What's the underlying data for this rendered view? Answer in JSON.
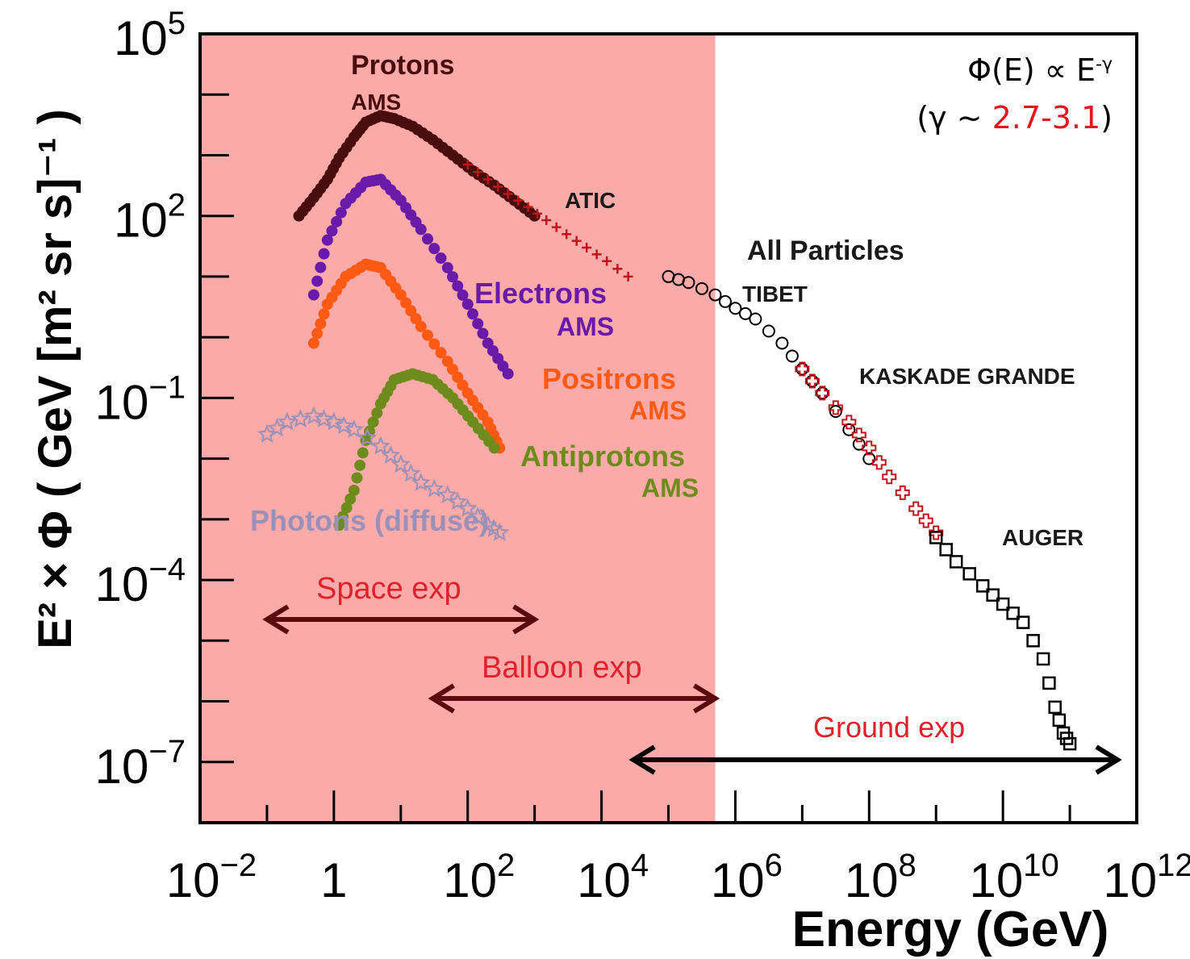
{
  "annotation": {
    "formula_main": "Φ(E) ∝ E",
    "formula_exp": "-γ",
    "gamma_open": "(γ ~ ",
    "gamma_value": "2.7-3.1",
    "gamma_close": ")"
  },
  "colors": {
    "space_band": "#fbaaaa",
    "protons": "#4a0d0d",
    "atic": "#c0141c",
    "electrons": "#6a1aa8",
    "positrons": "#ff5a14",
    "antiprotons": "#6e8c1c",
    "photons": "#9a90b8",
    "experiment_text": "#e0202a",
    "arrow_dark": "#5a0a0a",
    "black": "#000000"
  },
  "chart_data": {
    "type": "scatter",
    "ylabel": "E² × Φ ( GeV [m² sr s]⁻¹ )",
    "xlabel": "Energy (GeV)",
    "x_scale": "log",
    "y_scale": "log",
    "xlim": [
      0.01,
      1000000000000.0
    ],
    "ylim": [
      1e-08,
      100000.0
    ],
    "x_ticks": [
      {
        "value": 0.01,
        "base": "10",
        "exp": "−2"
      },
      {
        "value": 1,
        "base": "1",
        "exp": ""
      },
      {
        "value": 100,
        "base": "10",
        "exp": "2"
      },
      {
        "value": 10000,
        "base": "10",
        "exp": "4"
      },
      {
        "value": 1000000,
        "base": "10",
        "exp": "6"
      },
      {
        "value": 100000000,
        "base": "10",
        "exp": "8"
      },
      {
        "value": 10000000000,
        "base": "10",
        "exp": "10"
      },
      {
        "value": 1000000000000,
        "base": "10",
        "exp": "12"
      }
    ],
    "y_ticks": [
      {
        "value": 100000,
        "base": "10",
        "exp": "5"
      },
      {
        "value": 100,
        "base": "10",
        "exp": "2"
      },
      {
        "value": 0.1,
        "base": "10",
        "exp": "−1"
      },
      {
        "value": 0.0001,
        "base": "10",
        "exp": "−4"
      },
      {
        "value": 1e-07,
        "base": "10",
        "exp": "−7"
      }
    ],
    "shaded_region": {
      "x_from": 0.01,
      "x_to": 500000,
      "meaning": "space and balloon"
    },
    "series": [
      {
        "name": "Protons AMS",
        "marker": "dot",
        "x": [
          0.3,
          0.5,
          0.8,
          1.2,
          2,
          3,
          5,
          8,
          15,
          30,
          60,
          120,
          250,
          500,
          1000
        ],
        "y": [
          100,
          200,
          400,
          900,
          2000,
          3500,
          4500,
          4000,
          3000,
          1800,
          1000,
          550,
          320,
          180,
          100
        ]
      },
      {
        "name": "ATIC",
        "marker": "plus",
        "x": [
          100,
          200,
          400,
          800,
          1500,
          3000,
          6000,
          12000,
          25000
        ],
        "y": [
          700,
          400,
          230,
          140,
          85,
          50,
          30,
          18,
          10
        ]
      },
      {
        "name": "Electrons AMS",
        "marker": "dot",
        "x": [
          0.5,
          0.8,
          1.5,
          3,
          5,
          10,
          20,
          50,
          100,
          200,
          400
        ],
        "y": [
          5,
          40,
          160,
          360,
          400,
          180,
          60,
          14,
          3.5,
          0.8,
          0.25
        ]
      },
      {
        "name": "Positrons AMS",
        "marker": "dot",
        "x": [
          0.5,
          0.8,
          1.5,
          3,
          5,
          10,
          20,
          50,
          100,
          200,
          300
        ],
        "y": [
          0.8,
          3.5,
          10,
          16,
          14,
          5,
          1.5,
          0.4,
          0.12,
          0.04,
          0.015
        ]
      },
      {
        "name": "Antiprotons AMS",
        "marker": "dot",
        "x": [
          1.2,
          2,
          3,
          5,
          8,
          15,
          30,
          60,
          120,
          250
        ],
        "y": [
          0.0008,
          0.003,
          0.02,
          0.08,
          0.2,
          0.25,
          0.2,
          0.1,
          0.04,
          0.015
        ]
      },
      {
        "name": "Photons (diffuse)",
        "marker": "star",
        "x": [
          0.1,
          0.2,
          0.5,
          1,
          2,
          5,
          10,
          20,
          50,
          100,
          200,
          300
        ],
        "y": [
          0.025,
          0.04,
          0.05,
          0.04,
          0.03,
          0.016,
          0.008,
          0.004,
          0.0025,
          0.0015,
          0.0008,
          0.0006
        ]
      },
      {
        "name": "All Particles TIBET",
        "marker": "circle",
        "x": [
          100000,
          200000,
          500000,
          1000000,
          2000000,
          5000000,
          10000000,
          20000000,
          50000000,
          100000000
        ],
        "y": [
          10,
          8,
          5,
          3,
          2,
          0.8,
          0.3,
          0.12,
          0.03,
          0.01
        ]
      },
      {
        "name": "KASKADE GRANDE",
        "marker": "cross",
        "x": [
          10000000,
          20000000,
          50000000,
          100000000,
          200000000,
          500000000,
          1000000000
        ],
        "y": [
          0.3,
          0.12,
          0.04,
          0.015,
          0.005,
          0.0015,
          0.0006
        ]
      },
      {
        "name": "AUGER",
        "marker": "square",
        "x": [
          1000000000,
          2000000000,
          5000000000,
          10000000000,
          20000000000,
          40000000000,
          60000000000,
          80000000000,
          100000000000
        ],
        "y": [
          0.0005,
          0.0002,
          8e-05,
          4e-05,
          2e-05,
          5e-06,
          8e-07,
          3e-07,
          2e-07
        ]
      }
    ],
    "annotations": [
      "Protons",
      "AMS",
      "ATIC",
      "All Particles",
      "TIBET",
      "Electrons",
      "AMS",
      "Positrons",
      "AMS",
      "KASKADE GRANDE",
      "Antiprotons",
      "AMS",
      "Photons (diffuse)",
      "AUGER",
      "Space exp",
      "Balloon exp",
      "Ground exp"
    ],
    "ranges": [
      {
        "label": "Space exp",
        "x_from": 0.1,
        "x_to": 1000
      },
      {
        "label": "Balloon exp",
        "x_from": 30,
        "x_to": 500000
      },
      {
        "label": "Ground exp",
        "x_from": 30000,
        "x_to": 1000000000000
      }
    ]
  }
}
